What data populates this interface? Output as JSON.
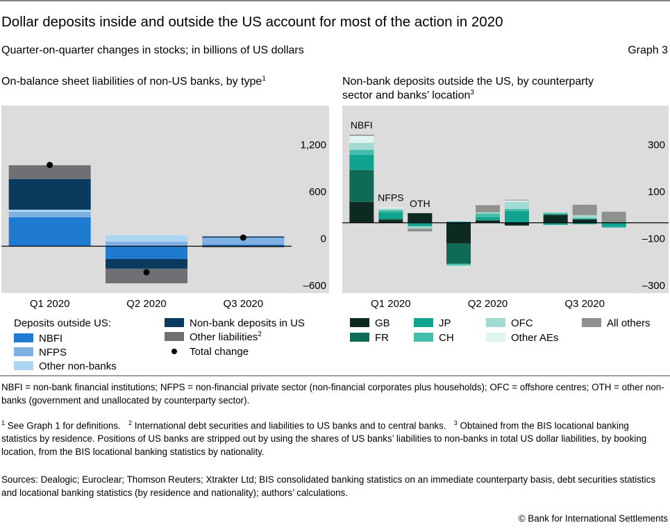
{
  "header": {
    "title": "Dollar deposits inside and outside the US account for most of the action in 2020",
    "subtitle": "Quarter-on-quarter changes in stocks; in billions of US dollars",
    "graph_label": "Graph 3"
  },
  "chart_data": [
    {
      "type": "stacked-bar",
      "title": "On-balance sheet liabilities of non-US banks, by type",
      "title_note": "1",
      "categories": [
        "Q1 2020",
        "Q2 2020",
        "Q3 2020"
      ],
      "legend_title": "Deposits outside US:",
      "series": [
        {
          "name": "NBFI",
          "color": "#1f7bd0",
          "values": [
            369,
            -164,
            20
          ]
        },
        {
          "name": "NFPS",
          "color": "#7eb0e2",
          "values": [
            71,
            60,
            90
          ]
        },
        {
          "name": "Other non-banks",
          "color": "#acd6f2",
          "values": [
            27,
            80,
            0
          ]
        },
        {
          "name": "Non-bank deposits in US",
          "color": "#0b3a5f",
          "values": [
            391,
            -124,
            15
          ]
        },
        {
          "name": "Other liabilities",
          "note": "2",
          "color": "#6e7073",
          "values": [
            178,
            -187,
            -15
          ]
        }
      ],
      "total": {
        "name": "Total change",
        "color": "#000000",
        "values": [
          1040,
          -333,
          110
        ]
      },
      "ylim": [
        -600,
        1800
      ],
      "yticks": [
        {
          "value": -600,
          "label": "–600"
        },
        0,
        600,
        {
          "value": 1200,
          "label": "1,200"
        }
      ]
    },
    {
      "type": "grouped-stacked-bar",
      "title": "Non-bank deposits outside the US, by counterparty sector and banks’ location",
      "title_note": "3",
      "categories": [
        "Q1 2020",
        "Q2 2020",
        "Q3 2020"
      ],
      "bar_labels": [
        "NBFI",
        "NFPS",
        "OTH"
      ],
      "series": [
        {
          "name": "GB",
          "color": "#0c2a22",
          "values": [
            [
              89,
              12,
              41
            ],
            [
              -89,
              9,
              -12
            ],
            [
              33,
              15,
              0
            ]
          ]
        },
        {
          "name": "FR",
          "color": "#0f6b55",
          "values": [
            [
              136,
              6,
              0
            ],
            [
              -86,
              3,
              0
            ],
            [
              3,
              0,
              0
            ]
          ]
        },
        {
          "name": "JP",
          "color": "#10a390",
          "values": [
            [
              65,
              27,
              -15
            ],
            [
              5,
              12,
              50
            ],
            [
              -9,
              -6,
              -18
            ]
          ]
        },
        {
          "name": "CH",
          "color": "#45bdac",
          "values": [
            [
              21,
              9,
              0
            ],
            [
              -6,
              15,
              9
            ],
            [
              6,
              6,
              -3
            ]
          ]
        },
        {
          "name": "OFC",
          "color": "#a0dad0",
          "values": [
            [
              30,
              6,
              -10
            ],
            [
              -6,
              6,
              30
            ],
            [
              3,
              12,
              0
            ]
          ]
        },
        {
          "name": "Other AEs",
          "color": "#e0f3ef",
          "values": [
            [
              30,
              6,
              0
            ],
            [
              -3,
              0,
              6
            ],
            [
              0,
              0,
              0
            ]
          ]
        },
        {
          "name": "All others",
          "color": "#8f918f",
          "values": [
            [
              5,
              0,
              -12
            ],
            [
              0,
              30,
              3
            ],
            [
              0,
              44,
              47
            ]
          ]
        }
      ],
      "ylim": [
        -300,
        500
      ],
      "yticks": [
        {
          "value": -300,
          "label": "–300"
        },
        {
          "value": -100,
          "label": "–100"
        },
        100,
        300
      ]
    }
  ],
  "notes": {
    "abbreviations": "NBFI = non-bank financial institutions; NFPS = non-financial private sector (non-financial corporates plus households); OFC = offshore centres; OTH = other non-banks (government and unallocated by counterparty sector).",
    "footnotes": [
      {
        "mark": "1",
        "text": "See Graph 1 for definitions."
      },
      {
        "mark": "2",
        "text": "International debt securities and liabilities to US banks and to central banks."
      },
      {
        "mark": "3",
        "text": "Obtained from the BIS locational banking statistics by residence. Positions of US banks are stripped out by using the shares of US banks’ liabilities to non-banks in total US dollar liabilities, by booking location, from the BIS locational banking statistics by nationality."
      }
    ],
    "sources": "Sources: Dealogic; Euroclear; Thomson Reuters; Xtrakter Ltd; BIS consolidated banking statistics on an immediate counterparty basis, debt securities statistics and locational banking statistics (by residence and nationality); authors’ calculations.",
    "copyright": "© Bank for International Settlements"
  }
}
